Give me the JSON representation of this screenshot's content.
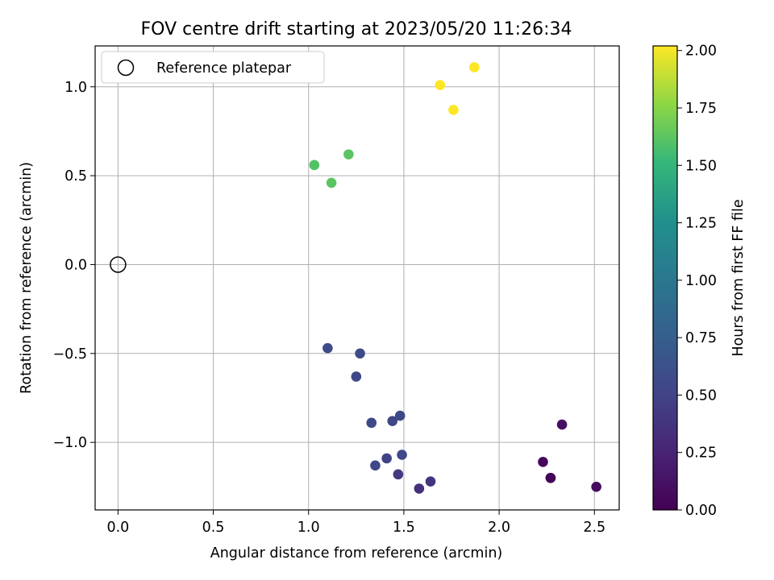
{
  "chart_data": {
    "type": "scatter",
    "title": "FOV centre drift starting at 2023/05/20 11:26:34",
    "xlabel": "Angular distance from reference (arcmin)",
    "ylabel": "Rotation from reference (arcmin)",
    "xlim": [
      -0.12,
      2.63
    ],
    "ylim": [
      -1.38,
      1.23
    ],
    "x_ticks": [
      0.0,
      0.5,
      1.0,
      1.5,
      2.0,
      2.5
    ],
    "x_tick_labels": [
      "0.0",
      "0.5",
      "1.0",
      "1.5",
      "2.0",
      "2.5"
    ],
    "y_ticks": [
      1.0,
      0.5,
      0.0,
      -0.5,
      -1.0
    ],
    "y_tick_labels": [
      "1.0",
      "0.5",
      "0.0",
      "−0.5",
      "−1.0"
    ],
    "grid": true,
    "legend": {
      "placement": "top-left",
      "entries": [
        "Reference platepar"
      ]
    },
    "reference": {
      "x": 0.0,
      "y": 0.0
    },
    "colorbar": {
      "label": "Hours from first FF file",
      "range": [
        0.0,
        2.02
      ],
      "ticks": [
        0.0,
        0.25,
        0.5,
        0.75,
        1.0,
        1.25,
        1.5,
        1.75,
        2.0
      ],
      "tick_labels": [
        "0.00",
        "0.25",
        "0.50",
        "0.75",
        "1.00",
        "1.25",
        "1.50",
        "1.75",
        "2.00"
      ],
      "colormap": "viridis"
    },
    "points": [
      {
        "x": 2.27,
        "y": -1.2,
        "hours": 0.0
      },
      {
        "x": 2.27,
        "y": -1.2,
        "hours": 0.02
      },
      {
        "x": 2.23,
        "y": -1.11,
        "hours": 0.05
      },
      {
        "x": 2.51,
        "y": -1.25,
        "hours": 0.07
      },
      {
        "x": 2.33,
        "y": -0.9,
        "hours": 0.1
      },
      {
        "x": 1.58,
        "y": -1.26,
        "hours": 0.35
      },
      {
        "x": 1.64,
        "y": -1.22,
        "hours": 0.38
      },
      {
        "x": 1.47,
        "y": -1.18,
        "hours": 0.42
      },
      {
        "x": 1.41,
        "y": -1.09,
        "hours": 0.5
      },
      {
        "x": 1.35,
        "y": -1.13,
        "hours": 0.53
      },
      {
        "x": 1.49,
        "y": -1.07,
        "hours": 0.55
      },
      {
        "x": 1.33,
        "y": -0.89,
        "hours": 0.55
      },
      {
        "x": 1.44,
        "y": -0.88,
        "hours": 0.53
      },
      {
        "x": 1.48,
        "y": -0.85,
        "hours": 0.55
      },
      {
        "x": 1.25,
        "y": -0.63,
        "hours": 0.55
      },
      {
        "x": 1.27,
        "y": -0.5,
        "hours": 0.57
      },
      {
        "x": 1.1,
        "y": -0.47,
        "hours": 0.57
      },
      {
        "x": 1.03,
        "y": 0.56,
        "hours": 1.6
      },
      {
        "x": 1.12,
        "y": 0.46,
        "hours": 1.62
      },
      {
        "x": 1.21,
        "y": 0.62,
        "hours": 1.62
      },
      {
        "x": 1.69,
        "y": 1.01,
        "hours": 2.02
      },
      {
        "x": 1.76,
        "y": 0.87,
        "hours": 2.02
      },
      {
        "x": 1.87,
        "y": 1.11,
        "hours": 2.02
      }
    ]
  }
}
